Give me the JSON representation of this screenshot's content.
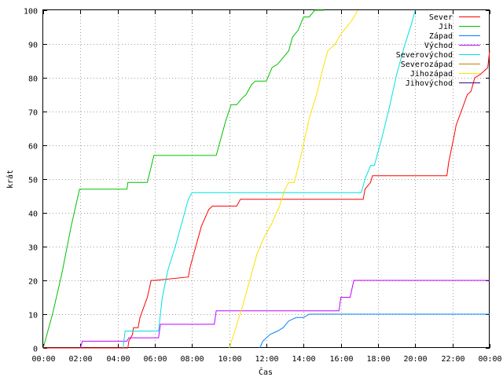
{
  "chart_data": {
    "type": "line",
    "xlabel": "Čas",
    "ylabel": "krát",
    "ylim": [
      0,
      100
    ],
    "xlim": [
      0,
      24
    ],
    "legend_position": "top-right",
    "x_tick_labels": [
      "00:00",
      "02:00",
      "04:00",
      "06:00",
      "08:00",
      "10:00",
      "12:00",
      "14:00",
      "16:00",
      "18:00",
      "20:00",
      "22:00",
      "00:00"
    ],
    "y_ticks": [
      0,
      10,
      20,
      30,
      40,
      50,
      60,
      70,
      80,
      90,
      100
    ],
    "series": [
      {
        "name": "Sever",
        "color": "#ff0000",
        "x": [
          0,
          4.55,
          4.6,
          4.8,
          4.85,
          5.1,
          5.2,
          5.6,
          5.8,
          6.0,
          7.8,
          7.9,
          8.2,
          8.5,
          8.9,
          9.1,
          10.4,
          10.6,
          17.2,
          17.3,
          17.6,
          17.7,
          21.7,
          21.8,
          22.1,
          22.2,
          22.6,
          22.8,
          23.0,
          23.2,
          23.5,
          23.7,
          23.9,
          24
        ],
        "y": [
          0,
          0,
          2,
          4,
          6,
          6,
          9,
          15,
          20,
          20,
          21,
          24,
          30,
          36,
          41,
          42,
          42,
          44,
          44,
          47,
          49,
          51,
          51,
          55,
          63,
          66,
          72,
          75,
          76,
          80,
          81,
          82,
          83,
          88
        ]
      },
      {
        "name": "Jih",
        "color": "#00c000",
        "x": [
          0,
          0.5,
          1.0,
          1.5,
          1.95,
          4.5,
          4.55,
          5.6,
          5.95,
          9.3,
          9.4,
          9.6,
          9.8,
          10.1,
          10.4,
          10.7,
          10.9,
          11.2,
          11.4,
          11.6,
          12.0,
          12.3,
          12.6,
          12.9,
          13.2,
          13.4,
          13.7,
          14.0,
          14.3,
          14.6,
          14.9,
          15.1
        ],
        "y": [
          0,
          10,
          22,
          36,
          47,
          47,
          49,
          49,
          57,
          57,
          59,
          63,
          67,
          72,
          72,
          74,
          75,
          78,
          79,
          79,
          79,
          83,
          84,
          86,
          88,
          92,
          94,
          98,
          98,
          100,
          100,
          100
        ]
      },
      {
        "name": "Západ",
        "color": "#0080ff",
        "x": [
          11.65,
          11.8,
          12.2,
          12.6,
          12.9,
          13.2,
          13.6,
          14.0,
          14.3,
          24
        ],
        "y": [
          0,
          2,
          4,
          5,
          6,
          8,
          9,
          9,
          10,
          10
        ]
      },
      {
        "name": "Východ",
        "color": "#c000ff",
        "x": [
          2.0,
          2.1,
          4.5,
          4.6,
          6.2,
          6.3,
          9.2,
          9.3,
          15.9,
          16.0,
          16.5,
          16.7,
          24
        ],
        "y": [
          0,
          2,
          2,
          3,
          3,
          7,
          7,
          11,
          11,
          15,
          15,
          20,
          20
        ]
      },
      {
        "name": "Severovýchod",
        "color": "#00e0e0",
        "x": [
          4.3,
          4.4,
          4.8,
          4.9,
          6.2,
          6.4,
          6.7,
          7.1,
          7.5,
          7.8,
          8.0,
          17.1,
          17.3,
          17.6,
          17.8,
          18.2,
          18.6,
          19.0,
          19.4,
          19.8,
          20.0
        ],
        "y": [
          0,
          5,
          5,
          5,
          5,
          15,
          23,
          30,
          38,
          44,
          46,
          46,
          50,
          54,
          54,
          62,
          71,
          81,
          89,
          96,
          100
        ]
      },
      {
        "name": "Severozápad",
        "color": "#c08000",
        "x": [],
        "y": []
      },
      {
        "name": "Jihozápad",
        "color": "#ffe000",
        "x": [
          10.0,
          10.3,
          10.7,
          11.1,
          11.5,
          11.9,
          12.3,
          12.7,
          13.0,
          13.2,
          13.5,
          13.9,
          14.3,
          14.7,
          15.0,
          15.3,
          15.7,
          16.0,
          16.3,
          16.6,
          16.9
        ],
        "y": [
          0,
          5,
          12,
          20,
          28,
          33,
          37,
          42,
          47,
          49,
          49,
          58,
          68,
          75,
          82,
          88,
          90,
          93,
          95,
          97,
          100
        ]
      },
      {
        "name": "Jihovýchod",
        "color": "#400080",
        "x": [],
        "y": []
      }
    ]
  }
}
